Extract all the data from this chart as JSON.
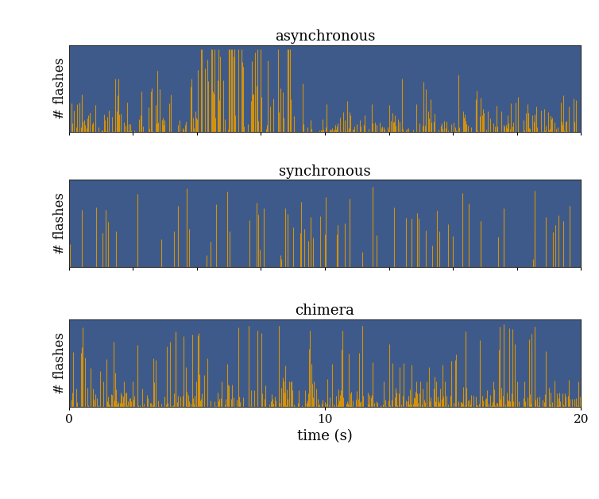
{
  "titles": [
    "asynchronous",
    "synchronous",
    "chimera"
  ],
  "xlabel": "time (s)",
  "ylabel": "# flashes",
  "xlim": [
    0,
    20
  ],
  "xticks": [
    0,
    10,
    20
  ],
  "background_color": "#3d5a8a",
  "bar_color": "#d4920a",
  "fig_bg": "#ffffff",
  "title_fontsize": 13,
  "label_fontsize": 12,
  "time_max": 20
}
